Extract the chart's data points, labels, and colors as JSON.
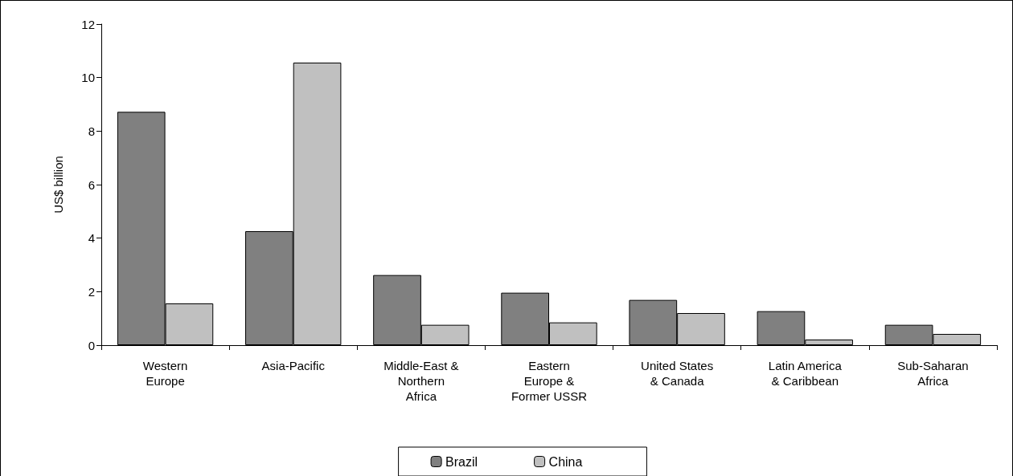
{
  "chart_data": {
    "type": "bar",
    "ylabel": "US$ billion",
    "categories": [
      "Western\nEurope",
      "Asia-Pacific",
      "Middle-East &\nNorthern\nAfrica",
      "Eastern\nEurope &\nFormer USSR",
      "United States\n& Canada",
      "Latin America\n& Caribbean",
      "Sub-Saharan\nAfrica"
    ],
    "series": [
      {
        "name": "Brazil",
        "color": "#808080",
        "values": [
          8.72,
          4.26,
          2.62,
          1.96,
          1.69,
          1.27,
          0.76
        ]
      },
      {
        "name": "China",
        "color": "#c0c0c0",
        "values": [
          1.56,
          10.56,
          0.76,
          0.85,
          1.2,
          0.21,
          0.42
        ]
      }
    ],
    "ylim": [
      0,
      12
    ],
    "yticks": [
      0,
      2,
      4,
      6,
      8,
      10,
      12
    ],
    "grid": false,
    "legend": "bottom"
  }
}
